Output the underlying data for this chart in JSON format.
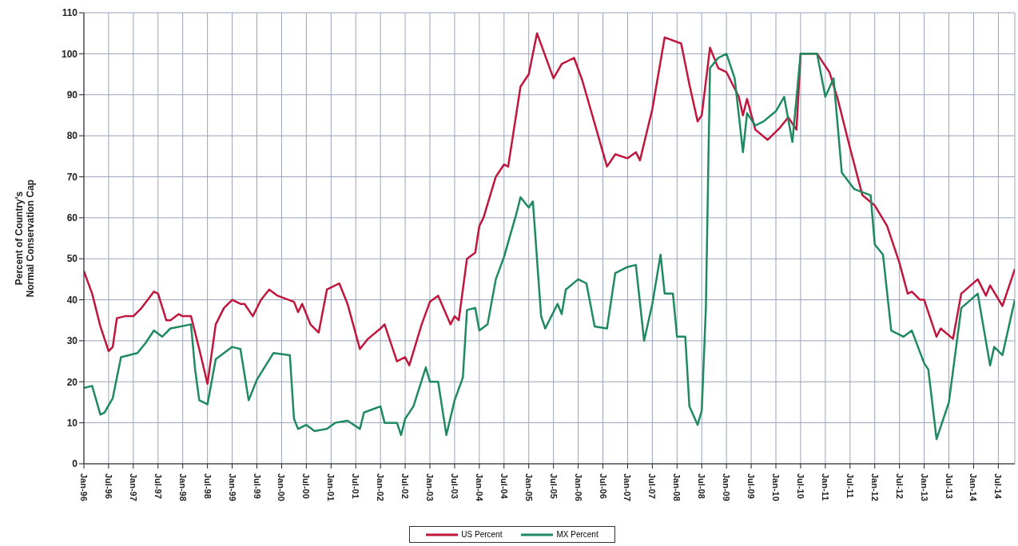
{
  "chart_data": {
    "type": "line",
    "ylabel": "Percent of Country's Normal Conservation Cap",
    "xlim": [
      "1996-01",
      "2014-11"
    ],
    "ylim": [
      0,
      110
    ],
    "yticks": [
      0,
      10,
      20,
      30,
      40,
      50,
      60,
      70,
      80,
      90,
      100,
      110
    ],
    "xticks": [
      {
        "value": "1996-01",
        "label": "Jan-96"
      },
      {
        "value": "1996-07",
        "label": "Jul-96"
      },
      {
        "value": "1997-01",
        "label": "Jan-97"
      },
      {
        "value": "1997-07",
        "label": "Jul-97"
      },
      {
        "value": "1998-01",
        "label": "Jan-98"
      },
      {
        "value": "1998-07",
        "label": "Jul-98"
      },
      {
        "value": "1999-01",
        "label": "Jan-99"
      },
      {
        "value": "1999-07",
        "label": "Jul-99"
      },
      {
        "value": "2000-01",
        "label": "Jan-00"
      },
      {
        "value": "2000-07",
        "label": "Jul-00"
      },
      {
        "value": "2001-01",
        "label": "Jan-01"
      },
      {
        "value": "2001-07",
        "label": "Jul-01"
      },
      {
        "value": "2002-01",
        "label": "Jan-02"
      },
      {
        "value": "2002-07",
        "label": "Jul-02"
      },
      {
        "value": "2003-01",
        "label": "Jan-03"
      },
      {
        "value": "2003-07",
        "label": "Jul-03"
      },
      {
        "value": "2004-01",
        "label": "Jan-04"
      },
      {
        "value": "2004-07",
        "label": "Jul-04"
      },
      {
        "value": "2005-01",
        "label": "Jan-05"
      },
      {
        "value": "2005-07",
        "label": "Jul-05"
      },
      {
        "value": "2006-01",
        "label": "Jan-06"
      },
      {
        "value": "2006-07",
        "label": "Jul-06"
      },
      {
        "value": "2007-01",
        "label": "Jan-07"
      },
      {
        "value": "2007-07",
        "label": "Jul-07"
      },
      {
        "value": "2008-01",
        "label": "Jan-08"
      },
      {
        "value": "2008-07",
        "label": "Jul-08"
      },
      {
        "value": "2009-01",
        "label": "Jan-09"
      },
      {
        "value": "2009-07",
        "label": "Jul-09"
      },
      {
        "value": "2010-01",
        "label": "Jan-10"
      },
      {
        "value": "2010-07",
        "label": "Jul-10"
      },
      {
        "value": "2011-01",
        "label": "Jan-11"
      },
      {
        "value": "2011-07",
        "label": "Jul-11"
      },
      {
        "value": "2012-01",
        "label": "Jan-12"
      },
      {
        "value": "2012-07",
        "label": "Jul-12"
      },
      {
        "value": "2013-01",
        "label": "Jan-13"
      },
      {
        "value": "2013-07",
        "label": "Jul-13"
      },
      {
        "value": "2014-01",
        "label": "Jan-14"
      },
      {
        "value": "2014-07",
        "label": "Jul-14"
      }
    ],
    "grid": true,
    "legend": "bottom",
    "marker": "none",
    "line_style": "solid",
    "series": [
      {
        "name": "US Percent",
        "color": "#c0163c",
        "x": [
          "1996-01",
          "1996-03",
          "1996-04",
          "1996-05",
          "1996-07",
          "1996-08",
          "1996-09",
          "1996-11",
          "1997-01",
          "1997-03",
          "1997-06",
          "1997-07",
          "1997-09",
          "1997-10",
          "1997-12",
          "1998-01",
          "1998-03",
          "1998-05",
          "1998-07",
          "1998-09",
          "1998-11",
          "1999-01",
          "1999-03",
          "1999-04",
          "1999-06",
          "1999-08",
          "1999-10",
          "1999-12",
          "2000-04",
          "2000-05",
          "2000-06",
          "2000-08",
          "2000-10",
          "2000-12",
          "2001-01",
          "2001-03",
          "2001-05",
          "2001-08",
          "2001-10",
          "2002-01",
          "2002-02",
          "2002-05",
          "2002-07",
          "2002-08",
          "2002-11",
          "2003-01",
          "2003-03",
          "2003-06",
          "2003-07",
          "2003-08",
          "2003-10",
          "2003-12",
          "2004-01",
          "2004-02",
          "2004-05",
          "2004-07",
          "2004-08",
          "2004-11",
          "2005-01",
          "2005-03",
          "2005-07",
          "2005-09",
          "2005-12",
          "2006-02",
          "2006-08",
          "2006-10",
          "2007-01",
          "2007-03",
          "2007-04",
          "2007-07",
          "2007-10",
          "2008-02",
          "2008-04",
          "2008-06",
          "2008-07",
          "2008-09",
          "2008-11",
          "2009-01",
          "2009-02",
          "2009-04",
          "2009-05",
          "2009-06",
          "2009-08",
          "2009-11",
          "2010-02",
          "2010-04",
          "2010-06",
          "2010-07",
          "2010-11",
          "2011-02",
          "2011-04",
          "2011-07",
          "2011-10",
          "2012-01",
          "2012-04",
          "2012-07",
          "2012-09",
          "2012-10",
          "2012-12",
          "2013-01",
          "2013-04",
          "2013-05",
          "2013-08",
          "2013-10",
          "2014-02",
          "2014-04",
          "2014-05",
          "2014-08",
          "2014-11"
        ],
        "values": [
          47,
          41.5,
          37.5,
          33.5,
          27.5,
          28.5,
          35.5,
          36,
          36,
          38,
          42,
          41.5,
          35,
          35,
          36.5,
          36,
          36,
          28,
          19.5,
          34,
          38,
          40,
          39,
          39,
          36,
          40,
          42.5,
          41,
          39.5,
          37,
          39,
          34,
          32,
          42.5,
          43,
          44,
          39,
          28,
          30.5,
          33,
          34,
          25,
          26,
          24,
          34,
          39.5,
          41,
          34,
          36,
          35,
          50,
          51.5,
          58,
          60,
          70,
          73,
          72.5,
          92,
          95,
          105,
          94,
          97.5,
          99,
          93.5,
          72.5,
          75.5,
          74.5,
          76,
          74,
          86.5,
          104,
          102.5,
          92.5,
          83.5,
          85,
          101.5,
          96.5,
          95.5,
          93.5,
          89.5,
          85,
          89,
          81.5,
          79,
          82,
          84.5,
          81.5,
          100,
          100,
          95.5,
          89,
          77,
          65.5,
          63,
          58,
          49,
          41.5,
          42,
          40,
          40,
          31,
          33,
          30.5,
          41.5,
          45,
          41,
          43.5,
          38.5,
          47.5
        ]
      },
      {
        "name": "MX Percent",
        "color": "#1f8a60",
        "x": [
          "1996-01",
          "1996-03",
          "1996-05",
          "1996-06",
          "1996-08",
          "1996-10",
          "1997-02",
          "1997-04",
          "1997-06",
          "1997-08",
          "1997-10",
          "1998-03",
          "1998-04",
          "1998-05",
          "1998-07",
          "1998-09",
          "1999-01",
          "1999-03",
          "1999-05",
          "1999-07",
          "1999-11",
          "2000-03",
          "2000-04",
          "2000-05",
          "2000-07",
          "2000-09",
          "2000-12",
          "2001-02",
          "2001-05",
          "2001-08",
          "2001-09",
          "2002-01",
          "2002-02",
          "2002-05",
          "2002-06",
          "2002-07",
          "2002-09",
          "2002-12",
          "2003-01",
          "2003-03",
          "2003-05",
          "2003-07",
          "2003-09",
          "2003-10",
          "2003-12",
          "2004-01",
          "2004-03",
          "2004-05",
          "2004-07",
          "2004-10",
          "2004-11",
          "2005-01",
          "2005-02",
          "2005-04",
          "2005-05",
          "2005-08",
          "2005-09",
          "2005-10",
          "2006-01",
          "2006-03",
          "2006-05",
          "2006-08",
          "2006-10",
          "2007-01",
          "2007-03",
          "2007-05",
          "2007-07",
          "2007-09",
          "2007-10",
          "2007-12",
          "2008-01",
          "2008-03",
          "2008-04",
          "2008-06",
          "2008-07",
          "2008-08",
          "2008-09",
          "2008-11",
          "2009-01",
          "2009-03",
          "2009-05",
          "2009-06",
          "2009-08",
          "2009-10",
          "2010-01",
          "2010-03",
          "2010-05",
          "2010-07",
          "2010-11",
          "2011-01",
          "2011-03",
          "2011-05",
          "2011-08",
          "2011-12",
          "2012-01",
          "2012-03",
          "2012-05",
          "2012-08",
          "2012-10",
          "2013-01",
          "2013-02",
          "2013-04",
          "2013-07",
          "2013-10",
          "2014-02",
          "2014-05",
          "2014-06",
          "2014-08",
          "2014-11"
        ],
        "values": [
          18.5,
          19,
          12,
          12.5,
          16,
          26,
          27,
          29.5,
          32.5,
          31,
          33,
          34,
          23,
          15.5,
          14.5,
          25.5,
          28.5,
          28,
          15.5,
          20.5,
          27,
          26.5,
          11,
          8.5,
          9.5,
          8,
          8.5,
          10,
          10.5,
          8.5,
          12.5,
          14,
          10,
          10,
          7,
          11,
          14,
          23.5,
          20,
          20,
          7,
          15.5,
          21,
          37.5,
          38,
          32.5,
          34,
          45,
          50.5,
          61,
          65,
          62.5,
          64,
          36,
          33,
          39,
          36.5,
          42.5,
          45,
          44,
          33.5,
          33,
          46.5,
          48,
          48.5,
          30,
          39,
          51,
          41.5,
          41.5,
          31,
          31,
          14,
          9.5,
          13,
          38,
          96.5,
          99,
          100,
          94,
          76,
          85.5,
          82.5,
          83.5,
          86,
          89.5,
          78.5,
          100,
          100,
          89.5,
          94,
          71,
          67,
          65.5,
          53.5,
          51,
          32.5,
          31,
          32.5,
          24.5,
          23,
          6,
          15,
          38,
          41.5,
          24,
          28.5,
          26.5,
          40
        ]
      }
    ]
  }
}
